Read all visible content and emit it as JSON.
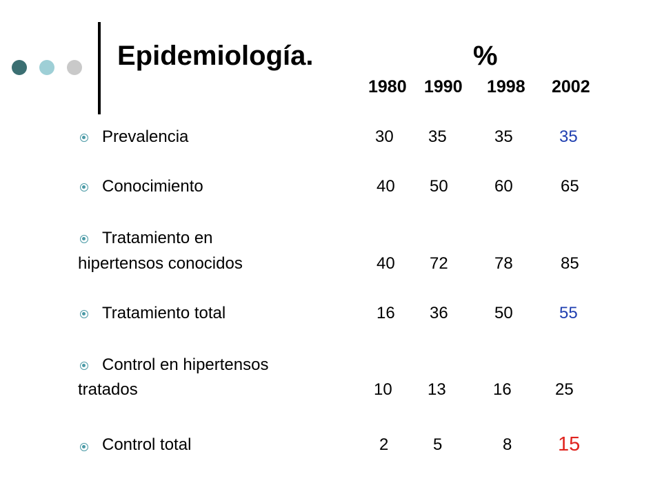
{
  "colors": {
    "dot_dark": "#3b6f72",
    "dot_teal": "#9ecfd6",
    "dot_gray": "#c9c9c9",
    "bullet": "#4b9aa6",
    "highlight_blue": "#1f3fb0",
    "highlight_red": "#e0241f"
  },
  "slide": {
    "title": "Epidemiología.",
    "percent": "%",
    "years": [
      "1980",
      "1990",
      "1998",
      "2002"
    ]
  },
  "rows": [
    {
      "label": "Prevalencia",
      "values": [
        "30",
        "35",
        "35",
        "35"
      ]
    },
    {
      "label": "Conocimiento",
      "values": [
        "40",
        "50",
        "60",
        "65"
      ]
    },
    {
      "label_line1": "Tratamiento en",
      "label_line2": "hipertensos conocidos",
      "values": [
        "40",
        "72",
        "78",
        "85"
      ]
    },
    {
      "label": "Tratamiento total",
      "values": [
        "16",
        "36",
        "50",
        "55"
      ]
    },
    {
      "label_line1": "Control en hipertensos",
      "label_line2": "tratados",
      "values": [
        "10",
        "13",
        "16",
        "25"
      ]
    },
    {
      "label": "Control total",
      "values": [
        "2",
        "5",
        "8",
        "15"
      ]
    }
  ]
}
